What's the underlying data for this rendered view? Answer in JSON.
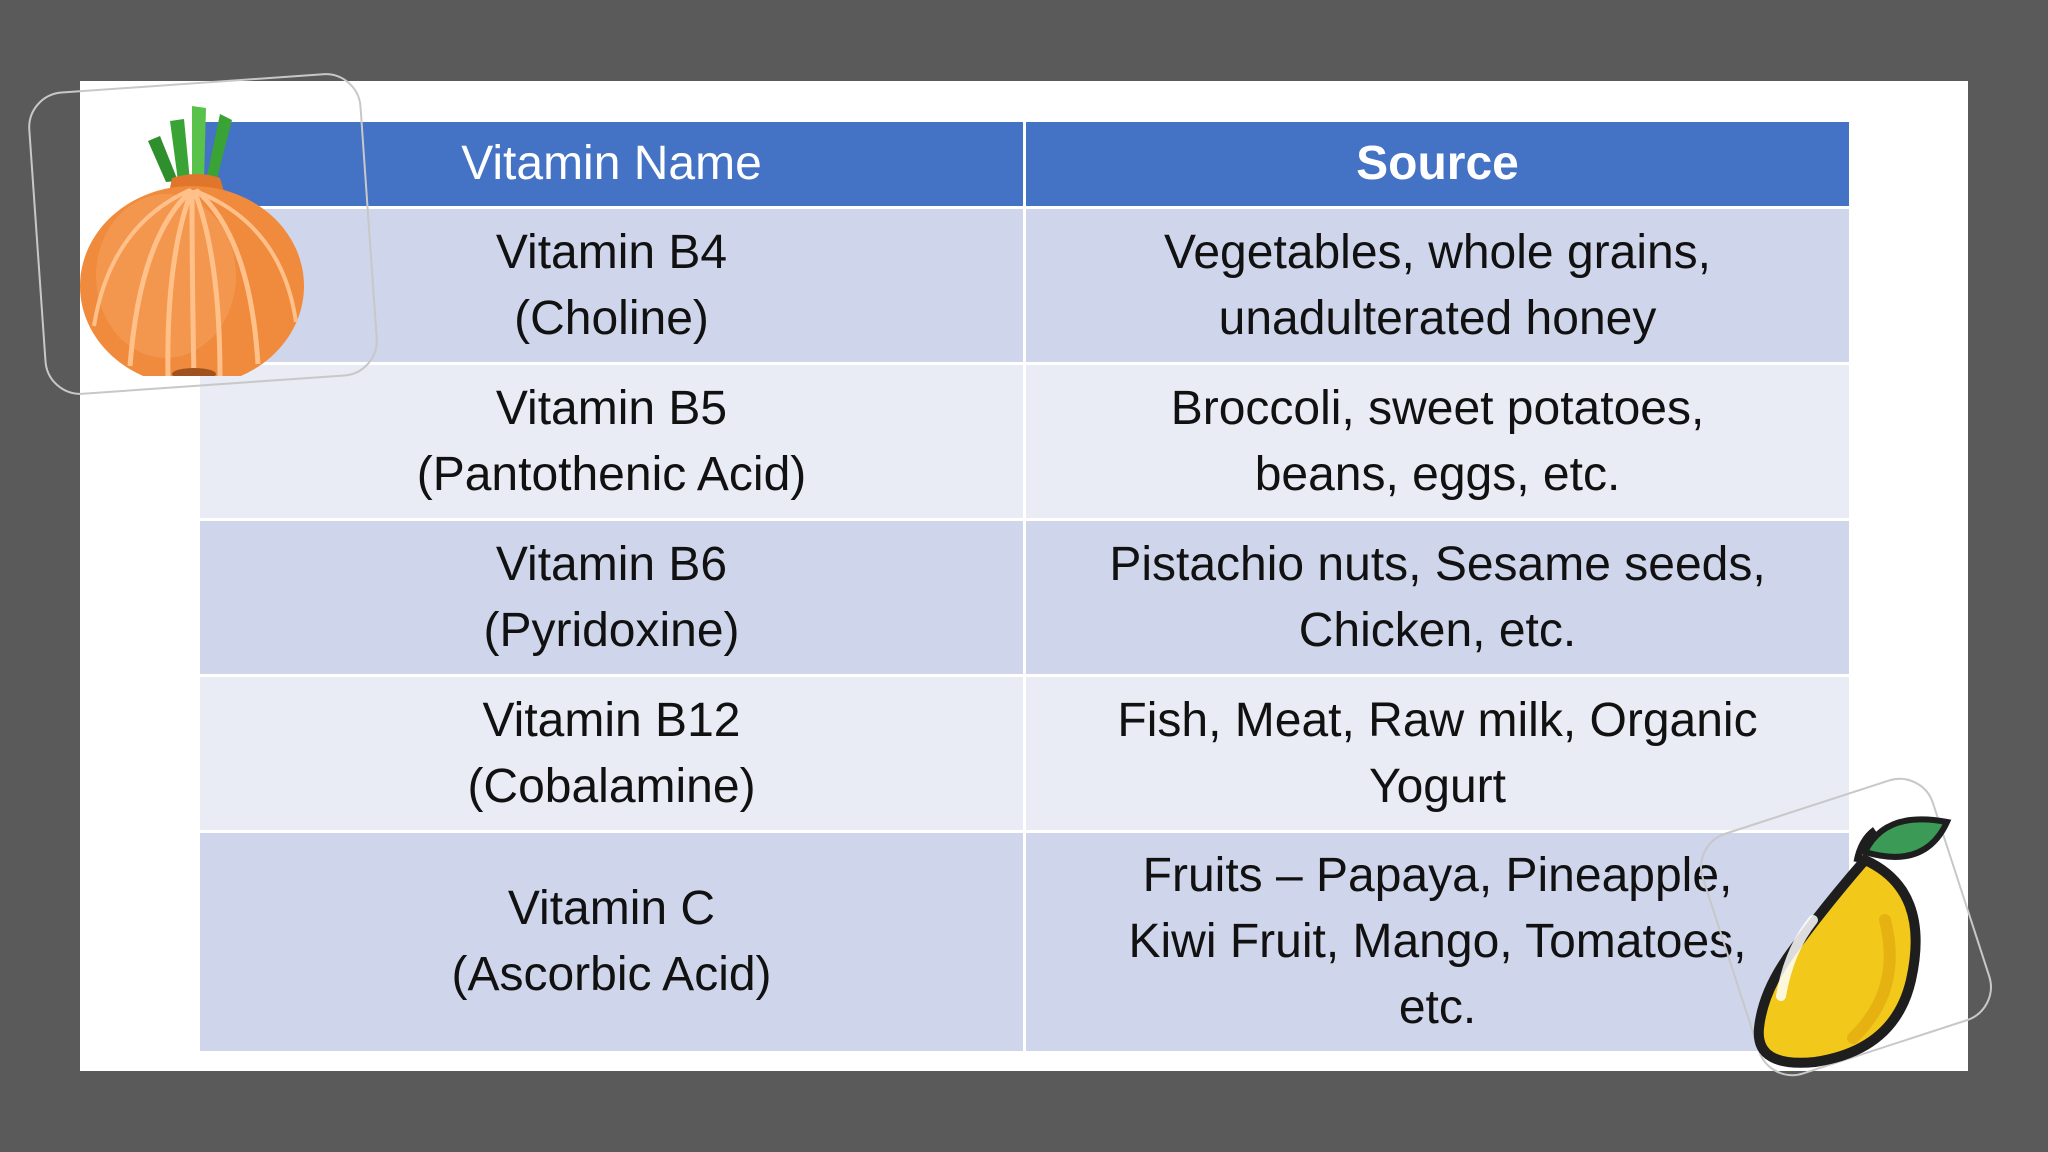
{
  "table": {
    "headers": {
      "name": "Vitamin Name",
      "source": "Source"
    },
    "rows": [
      {
        "name": [
          "Vitamin B4",
          "(Choline)"
        ],
        "source": [
          "Vegetables, whole grains,",
          "unadulterated honey"
        ]
      },
      {
        "name": [
          "Vitamin B5",
          "(Pantothenic Acid)"
        ],
        "source": [
          "Broccoli, sweet potatoes,",
          "beans, eggs, etc."
        ]
      },
      {
        "name": [
          "Vitamin B6",
          "(Pyridoxine)"
        ],
        "source": [
          "Pistachio nuts, Sesame seeds,",
          "Chicken, etc."
        ]
      },
      {
        "name": [
          "Vitamin B12",
          "(Cobalamine)"
        ],
        "source": [
          "Fish, Meat, Raw milk, Organic",
          "Yogurt"
        ]
      },
      {
        "name": [
          "Vitamin C",
          "(Ascorbic Acid)"
        ],
        "source": [
          "Fruits – Papaya, Pineapple,",
          "Kiwi Fruit, Mango, Tomatoes,",
          "etc."
        ]
      }
    ]
  },
  "colors": {
    "header": "#4472c4",
    "row_dark": "#cfd5ea",
    "row_light": "#e9ebf5",
    "background": "#5a5a5a"
  },
  "icons": {
    "onion": "onion-icon",
    "mango": "mango-icon"
  }
}
